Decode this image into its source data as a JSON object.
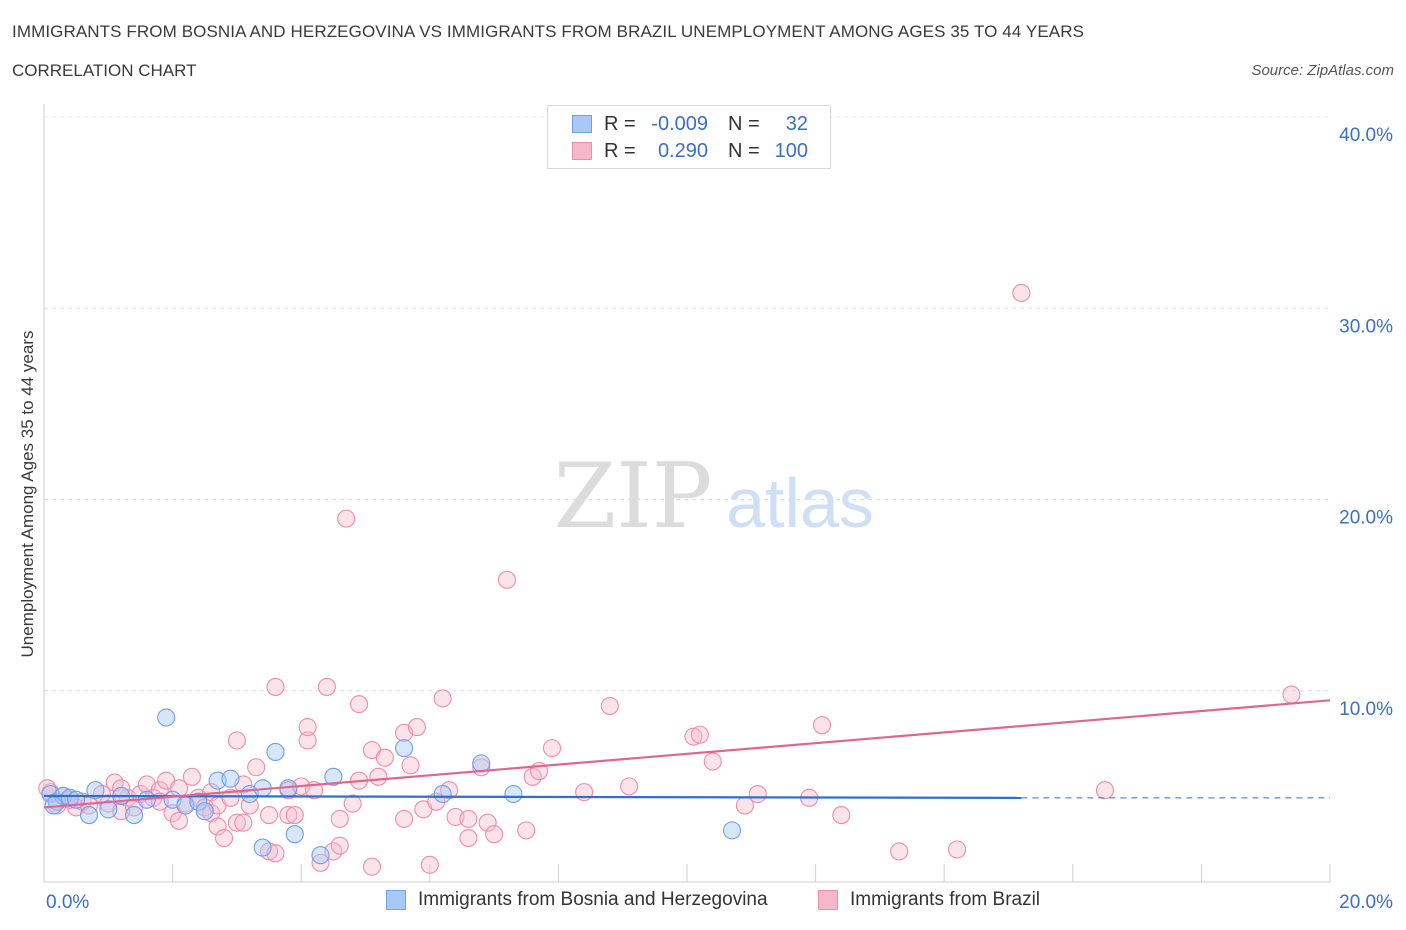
{
  "header": {
    "title": "IMMIGRANTS FROM BOSNIA AND HERZEGOVINA VS IMMIGRANTS FROM BRAZIL UNEMPLOYMENT AMONG AGES 35 TO 44 YEARS",
    "subtitle": "CORRELATION CHART",
    "source": "Source: ZipAtlas.com"
  },
  "watermark": {
    "zip": "ZIP",
    "atlas": "atlas"
  },
  "legend": {
    "rows": [
      {
        "r_label": "R =",
        "r_value": "-0.009",
        "n_label": "N =",
        "n_value": "32",
        "color": "#a9c8f3"
      },
      {
        "r_label": "R =",
        "r_value": "0.290",
        "n_label": "N =",
        "n_value": "100",
        "color": "#f5b8cb"
      }
    ]
  },
  "bottom_legend": [
    {
      "label": "Immigrants from Bosnia and Herzegovina",
      "color": "#a9c8f3"
    },
    {
      "label": "Immigrants from Brazil",
      "color": "#f5b8cb"
    }
  ],
  "chart_data": {
    "type": "scatter",
    "title": "IMMIGRANTS FROM BOSNIA AND HERZEGOVINA VS IMMIGRANTS FROM BRAZIL UNEMPLOYMENT AMONG AGES 35 TO 44 YEARS",
    "xlabel": "",
    "ylabel": "Unemployment Among Ages 35 to 44 years",
    "xlim": [
      0,
      20
    ],
    "ylim": [
      0,
      40
    ],
    "x_tick_labels": [
      "0.0%",
      "20.0%"
    ],
    "y_ticks": [
      10,
      20,
      30,
      40
    ],
    "y_tick_labels": [
      "10.0%",
      "20.0%",
      "30.0%",
      "40.0%"
    ],
    "grid": true,
    "colors": {
      "bosnia": "#6fa0e8",
      "bosnia_line": "#2f6fd0",
      "brazil": "#f08cab",
      "brazil_line": "#e06690"
    },
    "series": [
      {
        "name": "Immigrants from Bosnia and Herzegovina",
        "trend": {
          "x0": 0.0,
          "y0": 4.5,
          "x1": 15.2,
          "y1": 4.4,
          "dashed_to": 20.0,
          "dashed_y": 4.4
        },
        "points": [
          {
            "x": 0.1,
            "y": 4.6
          },
          {
            "x": 0.2,
            "y": 4.2
          },
          {
            "x": 0.3,
            "y": 4.5
          },
          {
            "x": 0.4,
            "y": 4.4
          },
          {
            "x": 0.5,
            "y": 4.3
          },
          {
            "x": 0.7,
            "y": 3.5
          },
          {
            "x": 0.8,
            "y": 4.8
          },
          {
            "x": 1.0,
            "y": 3.8
          },
          {
            "x": 1.2,
            "y": 4.5
          },
          {
            "x": 1.4,
            "y": 3.5
          },
          {
            "x": 1.6,
            "y": 4.3
          },
          {
            "x": 1.9,
            "y": 8.6
          },
          {
            "x": 2.0,
            "y": 4.3
          },
          {
            "x": 2.2,
            "y": 4.0
          },
          {
            "x": 2.4,
            "y": 4.2
          },
          {
            "x": 2.5,
            "y": 3.7
          },
          {
            "x": 2.7,
            "y": 5.3
          },
          {
            "x": 2.9,
            "y": 5.4
          },
          {
            "x": 3.2,
            "y": 4.6
          },
          {
            "x": 3.4,
            "y": 4.9
          },
          {
            "x": 3.4,
            "y": 1.8
          },
          {
            "x": 3.6,
            "y": 6.8
          },
          {
            "x": 3.8,
            "y": 4.9
          },
          {
            "x": 3.9,
            "y": 2.5
          },
          {
            "x": 4.3,
            "y": 1.4
          },
          {
            "x": 4.5,
            "y": 5.5
          },
          {
            "x": 5.6,
            "y": 7.0
          },
          {
            "x": 6.2,
            "y": 4.6
          },
          {
            "x": 6.8,
            "y": 6.2
          },
          {
            "x": 7.3,
            "y": 4.6
          },
          {
            "x": 10.7,
            "y": 2.7
          },
          {
            "x": 0.15,
            "y": 4.0
          }
        ]
      },
      {
        "name": "Immigrants from Brazil",
        "trend": {
          "x0": 0.0,
          "y0": 3.9,
          "x1": 20.0,
          "y1": 9.5
        },
        "points": [
          {
            "x": 0.1,
            "y": 4.7
          },
          {
            "x": 0.2,
            "y": 4.0
          },
          {
            "x": 0.3,
            "y": 4.5
          },
          {
            "x": 0.5,
            "y": 3.9
          },
          {
            "x": 0.6,
            "y": 4.2
          },
          {
            "x": 0.7,
            "y": 4.0
          },
          {
            "x": 0.9,
            "y": 4.6
          },
          {
            "x": 1.0,
            "y": 4.1
          },
          {
            "x": 1.1,
            "y": 5.2
          },
          {
            "x": 1.2,
            "y": 3.7
          },
          {
            "x": 1.3,
            "y": 4.4
          },
          {
            "x": 1.4,
            "y": 3.9
          },
          {
            "x": 1.5,
            "y": 4.6
          },
          {
            "x": 1.6,
            "y": 5.1
          },
          {
            "x": 1.7,
            "y": 4.4
          },
          {
            "x": 1.8,
            "y": 4.8
          },
          {
            "x": 1.8,
            "y": 4.2
          },
          {
            "x": 1.9,
            "y": 5.3
          },
          {
            "x": 2.0,
            "y": 3.6
          },
          {
            "x": 2.1,
            "y": 4.9
          },
          {
            "x": 2.1,
            "y": 3.2
          },
          {
            "x": 2.2,
            "y": 4.1
          },
          {
            "x": 2.3,
            "y": 5.5
          },
          {
            "x": 2.4,
            "y": 4.4
          },
          {
            "x": 2.5,
            "y": 3.9
          },
          {
            "x": 2.6,
            "y": 3.6
          },
          {
            "x": 2.6,
            "y": 4.7
          },
          {
            "x": 2.7,
            "y": 2.9
          },
          {
            "x": 2.7,
            "y": 4.0
          },
          {
            "x": 2.8,
            "y": 2.3
          },
          {
            "x": 2.9,
            "y": 4.4
          },
          {
            "x": 3.0,
            "y": 3.1
          },
          {
            "x": 3.0,
            "y": 7.4
          },
          {
            "x": 3.1,
            "y": 3.1
          },
          {
            "x": 3.1,
            "y": 5.1
          },
          {
            "x": 3.2,
            "y": 4.0
          },
          {
            "x": 3.3,
            "y": 6.0
          },
          {
            "x": 3.5,
            "y": 1.6
          },
          {
            "x": 3.5,
            "y": 3.5
          },
          {
            "x": 3.6,
            "y": 1.5
          },
          {
            "x": 3.6,
            "y": 10.2
          },
          {
            "x": 3.8,
            "y": 4.8
          },
          {
            "x": 3.8,
            "y": 3.5
          },
          {
            "x": 3.9,
            "y": 3.5
          },
          {
            "x": 4.0,
            "y": 5.0
          },
          {
            "x": 4.1,
            "y": 7.4
          },
          {
            "x": 4.1,
            "y": 8.1
          },
          {
            "x": 4.2,
            "y": 4.8
          },
          {
            "x": 4.3,
            "y": 1.0
          },
          {
            "x": 4.4,
            "y": 10.2
          },
          {
            "x": 4.5,
            "y": 1.6
          },
          {
            "x": 4.6,
            "y": 1.9
          },
          {
            "x": 4.6,
            "y": 3.3
          },
          {
            "x": 4.7,
            "y": 19.0
          },
          {
            "x": 4.8,
            "y": 4.1
          },
          {
            "x": 4.9,
            "y": 5.3
          },
          {
            "x": 4.9,
            "y": 9.3
          },
          {
            "x": 5.1,
            "y": 0.8
          },
          {
            "x": 5.1,
            "y": 6.9
          },
          {
            "x": 5.2,
            "y": 5.5
          },
          {
            "x": 5.3,
            "y": 6.5
          },
          {
            "x": 5.6,
            "y": 3.3
          },
          {
            "x": 5.6,
            "y": 7.8
          },
          {
            "x": 5.7,
            "y": 6.1
          },
          {
            "x": 5.8,
            "y": 8.1
          },
          {
            "x": 5.9,
            "y": 3.8
          },
          {
            "x": 6.0,
            "y": 0.9
          },
          {
            "x": 6.1,
            "y": 4.2
          },
          {
            "x": 6.2,
            "y": 9.6
          },
          {
            "x": 6.3,
            "y": 4.8
          },
          {
            "x": 6.4,
            "y": 3.4
          },
          {
            "x": 6.6,
            "y": 2.3
          },
          {
            "x": 6.6,
            "y": 3.3
          },
          {
            "x": 6.8,
            "y": 6.0
          },
          {
            "x": 6.9,
            "y": 3.1
          },
          {
            "x": 7.0,
            "y": 2.5
          },
          {
            "x": 7.2,
            "y": 15.8
          },
          {
            "x": 7.5,
            "y": 2.7
          },
          {
            "x": 7.6,
            "y": 5.5
          },
          {
            "x": 7.7,
            "y": 5.8
          },
          {
            "x": 7.9,
            "y": 7.0
          },
          {
            "x": 8.4,
            "y": 4.7
          },
          {
            "x": 8.8,
            "y": 9.2
          },
          {
            "x": 9.1,
            "y": 5.0
          },
          {
            "x": 10.1,
            "y": 7.6
          },
          {
            "x": 10.2,
            "y": 7.7
          },
          {
            "x": 10.4,
            "y": 6.3
          },
          {
            "x": 10.9,
            "y": 4.0
          },
          {
            "x": 11.1,
            "y": 4.6
          },
          {
            "x": 11.9,
            "y": 4.4
          },
          {
            "x": 12.1,
            "y": 8.2
          },
          {
            "x": 12.4,
            "y": 3.5
          },
          {
            "x": 13.3,
            "y": 1.6
          },
          {
            "x": 14.2,
            "y": 1.7
          },
          {
            "x": 15.2,
            "y": 30.8
          },
          {
            "x": 16.5,
            "y": 4.8
          },
          {
            "x": 19.4,
            "y": 9.8
          },
          {
            "x": 0.05,
            "y": 4.9
          },
          {
            "x": 0.4,
            "y": 4.3
          },
          {
            "x": 1.2,
            "y": 4.9
          }
        ]
      }
    ]
  }
}
